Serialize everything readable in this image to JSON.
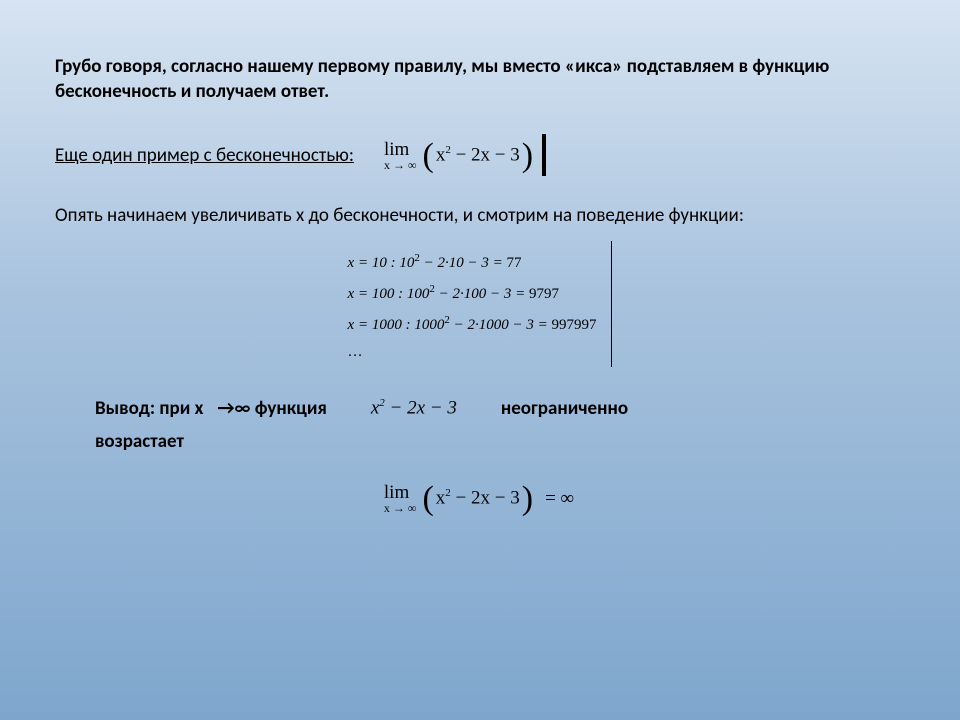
{
  "intro": "Грубо говоря, согласно нашему первому правилу, мы вместо «икса» подставляем в функцию   бесконечность и получаем ответ.",
  "example_label": "Еще один пример с бесконечностью:",
  "lim1": {
    "lim_text": "lim",
    "sub_text": "x → ∞",
    "expr_html": "x<span class=\"sup\">2</span> − 2x − 3"
  },
  "line2": "Опять начинаем увеличивать    x   до бесконечности, и смотрим на поведение функции:",
  "calc": {
    "l1": {
      "lhs": "x = 10 : 10",
      "sup": "2",
      "mid": " − 2·10 − 3 = ",
      "res": "77"
    },
    "l2": {
      "lhs": "x = 100 : 100",
      "sup": "2",
      "mid": " − 2·100 − 3 = ",
      "res": "9797"
    },
    "l3": {
      "lhs": "x = 1000 : 1000",
      "sup": "2",
      "mid": " − 2·1000 − 3 = ",
      "res": "997997"
    },
    "dots": "…"
  },
  "conclusion": {
    "t1": "Вывод: при   x",
    "arrow": "→∞ функция",
    "expr_html": "x<span class=\"sup\">2</span> − 2x − 3",
    "t2": "неограниченно",
    "t3": "возрастает"
  },
  "final": {
    "lim_text": "lim",
    "sub_text": "x → ∞",
    "expr_html": "x<span class=\"sup\">2</span> − 2x − 3",
    "eq": "= ∞"
  },
  "colors": {
    "bg_top": "#d7e4f2",
    "bg_mid": "#a9c3de",
    "bg_bot": "#7ea6cd",
    "text": "#000000"
  }
}
